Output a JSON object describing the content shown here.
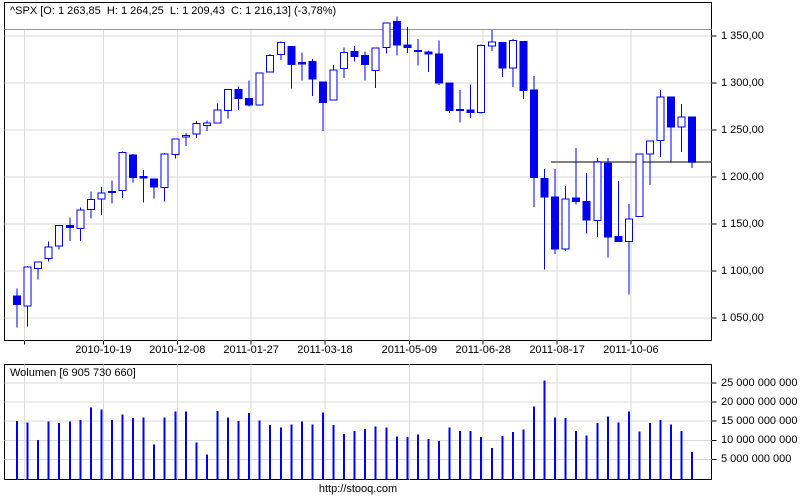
{
  "page": {
    "footer_url": "http://stooq.com",
    "background": "#FFFFFF"
  },
  "price_panel": {
    "header": "^SPX [O: 1 263,85  H: 1 264,25  L: 1 209,43  C: 1 216,13] (-3,78%)"
  },
  "volume_panel": {
    "header": "Wolumen [6 905 730 660]"
  },
  "chart_data": {
    "type": "candlestick",
    "symbol": "^SPX",
    "interval": "weekly",
    "title": "^SPX weekly candlestick with volume",
    "last": {
      "open": 1263.85,
      "high": 1264.25,
      "low": 1209.43,
      "close": 1216.13,
      "change_pct": -3.78
    },
    "price_axis": {
      "min": 1050,
      "max": 1350,
      "step": 50,
      "ticks": [
        {
          "value": 1350,
          "label": "1 350,00"
        },
        {
          "value": 1300,
          "label": "1 300,00"
        },
        {
          "value": 1250,
          "label": "1 250,00"
        },
        {
          "value": 1200,
          "label": "1 200,00"
        },
        {
          "value": 1150,
          "label": "1 150,00"
        },
        {
          "value": 1100,
          "label": "1 100,00"
        },
        {
          "value": 1050,
          "label": "1 050,00"
        }
      ]
    },
    "volume_axis": {
      "min": 0,
      "max": 25000000000,
      "step": 5000000000,
      "ticks": [
        {
          "value": 25000000000,
          "label": "25 000 000 000"
        },
        {
          "value": 20000000000,
          "label": "20 000 000 000"
        },
        {
          "value": 15000000000,
          "label": "15 000 000 000"
        },
        {
          "value": 10000000000,
          "label": "10 000 000 000"
        },
        {
          "value": 5000000000,
          "label": "5 000 000 000"
        }
      ]
    },
    "x_axis": {
      "labels": [
        {
          "index": 0.5,
          "label": ""
        },
        {
          "index": 8,
          "label": "2010-10-19"
        },
        {
          "index": 15,
          "label": "2010-12-08"
        },
        {
          "index": 22,
          "label": "2011-01-27"
        },
        {
          "index": 29,
          "label": "2011-03-18"
        },
        {
          "index": 37,
          "label": "2011-05-09"
        },
        {
          "index": 44,
          "label": "2011-06-28"
        },
        {
          "index": 51,
          "label": "2011-08-17"
        },
        {
          "index": 58,
          "label": "2011-10-06"
        }
      ]
    },
    "close_line": {
      "price": 1216.13,
      "from_index": 51
    },
    "colors": {
      "candle": "#0000EE",
      "up_fill": "#FFFFFF",
      "grid": "#DADADA",
      "frame": "#000000",
      "close_line": "#808080",
      "header_line": "#999999"
    },
    "series": [
      {
        "d": "2010-08-23",
        "o": 1073.36,
        "h": 1081.58,
        "l": 1039.7,
        "c": 1064.59,
        "v": 15100000000
      },
      {
        "d": "2010-08-30",
        "o": 1062.9,
        "h": 1105.1,
        "l": 1040.88,
        "c": 1104.51,
        "v": 14600000000
      },
      {
        "d": "2010-09-06",
        "o": 1102.6,
        "h": 1110.27,
        "l": 1091.15,
        "c": 1109.55,
        "v": 10100000000
      },
      {
        "d": "2010-09-13",
        "o": 1113.38,
        "h": 1131.47,
        "l": 1110.0,
        "c": 1125.59,
        "v": 14900000000
      },
      {
        "d": "2010-09-20",
        "o": 1126.57,
        "h": 1148.9,
        "l": 1122.79,
        "c": 1148.67,
        "v": 14500000000
      },
      {
        "d": "2010-09-27",
        "o": 1148.64,
        "h": 1157.16,
        "l": 1132.09,
        "c": 1146.24,
        "v": 14900000000
      },
      {
        "d": "2010-10-04",
        "o": 1144.96,
        "h": 1167.73,
        "l": 1131.87,
        "c": 1165.15,
        "v": 15300000000
      },
      {
        "d": "2010-10-11",
        "o": 1165.32,
        "h": 1184.38,
        "l": 1155.71,
        "c": 1176.19,
        "v": 18600000000
      },
      {
        "d": "2010-10-18",
        "o": 1176.83,
        "h": 1189.43,
        "l": 1159.71,
        "c": 1183.08,
        "v": 18000000000
      },
      {
        "d": "2010-10-25",
        "o": 1184.74,
        "h": 1196.14,
        "l": 1171.7,
        "c": 1183.26,
        "v": 15300000000
      },
      {
        "d": "2010-11-01",
        "o": 1185.71,
        "h": 1227.08,
        "l": 1177.65,
        "c": 1225.85,
        "v": 16700000000
      },
      {
        "d": "2010-11-08",
        "o": 1223.24,
        "h": 1224.57,
        "l": 1194.08,
        "c": 1199.21,
        "v": 15800000000
      },
      {
        "d": "2010-11-15",
        "o": 1200.44,
        "h": 1207.43,
        "l": 1173.0,
        "c": 1199.73,
        "v": 16000000000
      },
      {
        "d": "2010-11-22",
        "o": 1198.07,
        "h": 1198.62,
        "l": 1176.91,
        "c": 1189.4,
        "v": 8900000000
      },
      {
        "d": "2010-11-29",
        "o": 1189.08,
        "h": 1225.57,
        "l": 1174.14,
        "c": 1224.71,
        "v": 16000000000
      },
      {
        "d": "2010-12-06",
        "o": 1223.87,
        "h": 1240.4,
        "l": 1219.5,
        "c": 1240.4,
        "v": 17500000000
      },
      {
        "d": "2010-12-13",
        "o": 1242.52,
        "h": 1246.73,
        "l": 1232.85,
        "c": 1243.91,
        "v": 17500000000
      },
      {
        "d": "2010-12-20",
        "o": 1245.76,
        "h": 1259.39,
        "l": 1241.51,
        "c": 1256.77,
        "v": 9400000000
      },
      {
        "d": "2010-12-27",
        "o": 1254.66,
        "h": 1259.9,
        "l": 1248.76,
        "c": 1257.64,
        "v": 6300000000
      },
      {
        "d": "2011-01-03",
        "o": 1257.62,
        "h": 1278.17,
        "l": 1257.62,
        "c": 1271.5,
        "v": 17700000000
      },
      {
        "d": "2011-01-10",
        "o": 1270.84,
        "h": 1293.24,
        "l": 1262.18,
        "c": 1293.24,
        "v": 16000000000
      },
      {
        "d": "2011-01-18",
        "o": 1293.22,
        "h": 1296.06,
        "l": 1271.26,
        "c": 1283.35,
        "v": 15100000000
      },
      {
        "d": "2011-01-24",
        "o": 1283.29,
        "h": 1302.67,
        "l": 1275.1,
        "c": 1276.34,
        "v": 17100000000
      },
      {
        "d": "2011-01-31",
        "o": 1276.5,
        "h": 1311.0,
        "l": 1276.5,
        "c": 1310.87,
        "v": 15200000000
      },
      {
        "d": "2011-02-07",
        "o": 1311.85,
        "h": 1330.79,
        "l": 1311.74,
        "c": 1329.15,
        "v": 14000000000
      },
      {
        "d": "2011-02-14",
        "o": 1330.42,
        "h": 1344.07,
        "l": 1324.61,
        "c": 1343.01,
        "v": 13300000000
      },
      {
        "d": "2011-02-22",
        "o": 1338.91,
        "h": 1338.91,
        "l": 1294.26,
        "c": 1319.88,
        "v": 14200000000
      },
      {
        "d": "2011-02-28",
        "o": 1321.61,
        "h": 1332.28,
        "l": 1302.58,
        "c": 1321.15,
        "v": 14900000000
      },
      {
        "d": "2011-03-07",
        "o": 1322.72,
        "h": 1325.74,
        "l": 1286.37,
        "c": 1304.28,
        "v": 14200000000
      },
      {
        "d": "2011-03-14",
        "o": 1301.19,
        "h": 1301.19,
        "l": 1249.05,
        "c": 1279.21,
        "v": 17300000000
      },
      {
        "d": "2011-03-21",
        "o": 1281.65,
        "h": 1319.18,
        "l": 1281.65,
        "c": 1313.8,
        "v": 14000000000
      },
      {
        "d": "2011-03-28",
        "o": 1315.45,
        "h": 1337.85,
        "l": 1305.26,
        "c": 1332.41,
        "v": 11700000000
      },
      {
        "d": "2011-04-04",
        "o": 1333.56,
        "h": 1339.46,
        "l": 1322.94,
        "c": 1328.17,
        "v": 12500000000
      },
      {
        "d": "2011-04-11",
        "o": 1329.01,
        "h": 1333.77,
        "l": 1302.42,
        "c": 1319.68,
        "v": 12900000000
      },
      {
        "d": "2011-04-18",
        "o": 1313.35,
        "h": 1337.49,
        "l": 1294.7,
        "c": 1337.38,
        "v": 13600000000
      },
      {
        "d": "2011-04-25",
        "o": 1337.75,
        "h": 1364.56,
        "l": 1331.47,
        "c": 1363.61,
        "v": 13300000000
      },
      {
        "d": "2011-05-02",
        "o": 1365.21,
        "h": 1370.58,
        "l": 1329.17,
        "c": 1340.2,
        "v": 11000000000
      },
      {
        "d": "2011-05-09",
        "o": 1340.2,
        "h": 1359.44,
        "l": 1332.03,
        "c": 1337.77,
        "v": 10900000000
      },
      {
        "d": "2011-05-16",
        "o": 1334.77,
        "h": 1346.82,
        "l": 1318.51,
        "c": 1333.27,
        "v": 11500000000
      },
      {
        "d": "2011-05-23",
        "o": 1333.07,
        "h": 1334.62,
        "l": 1311.8,
        "c": 1331.1,
        "v": 10300000000
      },
      {
        "d": "2011-05-31",
        "o": 1331.1,
        "h": 1345.2,
        "l": 1297.9,
        "c": 1300.16,
        "v": 9800000000
      },
      {
        "d": "2011-06-06",
        "o": 1300.26,
        "h": 1300.26,
        "l": 1268.28,
        "c": 1270.98,
        "v": 13300000000
      },
      {
        "d": "2011-06-13",
        "o": 1271.88,
        "h": 1292.5,
        "l": 1258.07,
        "c": 1271.5,
        "v": 12400000000
      },
      {
        "d": "2011-06-20",
        "o": 1271.5,
        "h": 1298.61,
        "l": 1262.87,
        "c": 1268.45,
        "v": 12500000000
      },
      {
        "d": "2011-06-27",
        "o": 1268.44,
        "h": 1341.01,
        "l": 1267.53,
        "c": 1339.67,
        "v": 10900000000
      },
      {
        "d": "2011-07-05",
        "o": 1339.59,
        "h": 1356.48,
        "l": 1334.3,
        "c": 1343.8,
        "v": 8000000000
      },
      {
        "d": "2011-07-11",
        "o": 1343.31,
        "h": 1343.31,
        "l": 1306.51,
        "c": 1316.14,
        "v": 11100000000
      },
      {
        "d": "2011-07-18",
        "o": 1316.03,
        "h": 1347.0,
        "l": 1295.92,
        "c": 1345.02,
        "v": 12200000000
      },
      {
        "d": "2011-07-25",
        "o": 1344.32,
        "h": 1344.32,
        "l": 1282.86,
        "c": 1292.28,
        "v": 12800000000
      },
      {
        "d": "2011-08-01",
        "o": 1292.59,
        "h": 1307.38,
        "l": 1168.09,
        "c": 1199.38,
        "v": 18800000000
      },
      {
        "d": "2011-08-08",
        "o": 1198.48,
        "h": 1208.47,
        "l": 1101.54,
        "c": 1178.81,
        "v": 25600000000
      },
      {
        "d": "2011-08-15",
        "o": 1178.86,
        "h": 1208.47,
        "l": 1118.01,
        "c": 1123.53,
        "v": 16000000000
      },
      {
        "d": "2011-08-22",
        "o": 1123.55,
        "h": 1190.68,
        "l": 1121.09,
        "c": 1176.8,
        "v": 15900000000
      },
      {
        "d": "2011-08-29",
        "o": 1177.91,
        "h": 1230.71,
        "l": 1170.56,
        "c": 1173.97,
        "v": 12500000000
      },
      {
        "d": "2011-09-06",
        "o": 1173.97,
        "h": 1204.4,
        "l": 1140.13,
        "c": 1154.23,
        "v": 11300000000
      },
      {
        "d": "2011-09-12",
        "o": 1153.5,
        "h": 1220.06,
        "l": 1136.07,
        "c": 1216.01,
        "v": 14500000000
      },
      {
        "d": "2011-09-19",
        "o": 1214.99,
        "h": 1220.39,
        "l": 1114.22,
        "c": 1136.43,
        "v": 16200000000
      },
      {
        "d": "2011-09-26",
        "o": 1136.91,
        "h": 1195.86,
        "l": 1131.07,
        "c": 1131.42,
        "v": 14600000000
      },
      {
        "d": "2011-10-03",
        "o": 1131.21,
        "h": 1171.4,
        "l": 1074.77,
        "c": 1155.46,
        "v": 17500000000
      },
      {
        "d": "2011-10-10",
        "o": 1158.15,
        "h": 1224.61,
        "l": 1158.15,
        "c": 1224.58,
        "v": 12300000000
      },
      {
        "d": "2011-10-17",
        "o": 1224.47,
        "h": 1239.03,
        "l": 1191.48,
        "c": 1238.25,
        "v": 14500000000
      },
      {
        "d": "2011-10-24",
        "o": 1238.72,
        "h": 1292.66,
        "l": 1221.06,
        "c": 1285.09,
        "v": 15300000000
      },
      {
        "d": "2011-10-31",
        "o": 1284.96,
        "h": 1284.96,
        "l": 1215.42,
        "c": 1253.23,
        "v": 14200000000
      },
      {
        "d": "2011-11-07",
        "o": 1253.21,
        "h": 1277.55,
        "l": 1226.64,
        "c": 1263.85,
        "v": 12500000000
      },
      {
        "d": "2011-11-14",
        "o": 1263.85,
        "h": 1264.25,
        "l": 1209.43,
        "c": 1216.13,
        "v": 6905730660
      }
    ]
  }
}
